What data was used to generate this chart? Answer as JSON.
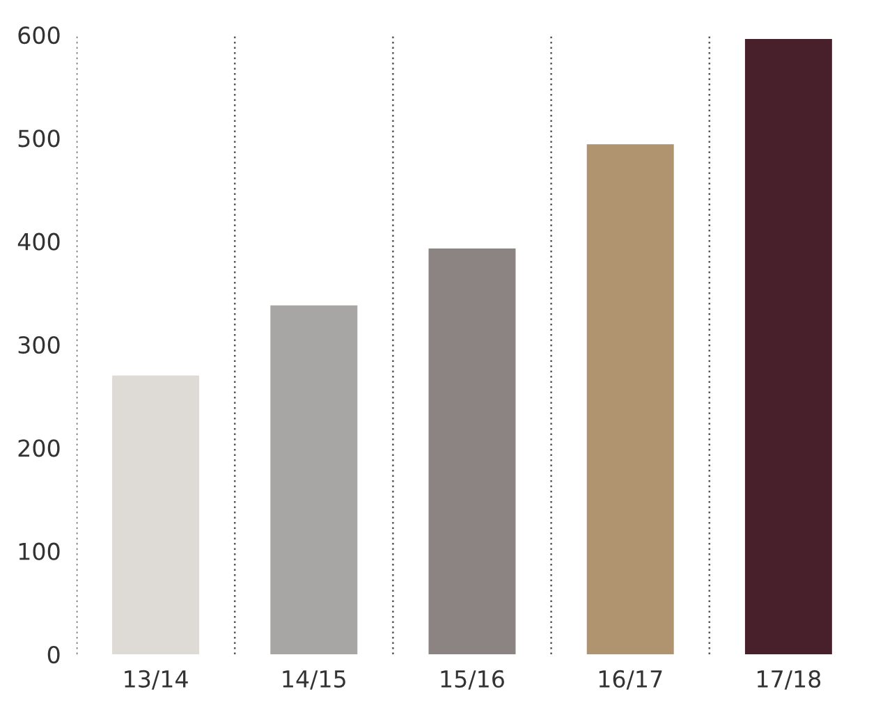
{
  "chart_data": {
    "type": "bar",
    "categories": [
      "13/14",
      "14/15",
      "15/16",
      "16/17",
      "17/18"
    ],
    "values": [
      270,
      338,
      393,
      494,
      596
    ],
    "colors": [
      "#dedad6",
      "#a7a6a4",
      "#8c8482",
      "#b0936f",
      "#48202c"
    ],
    "ylim": [
      0,
      600
    ],
    "yticks": [
      0,
      100,
      200,
      300,
      400,
      500,
      600
    ],
    "grid": "x"
  }
}
